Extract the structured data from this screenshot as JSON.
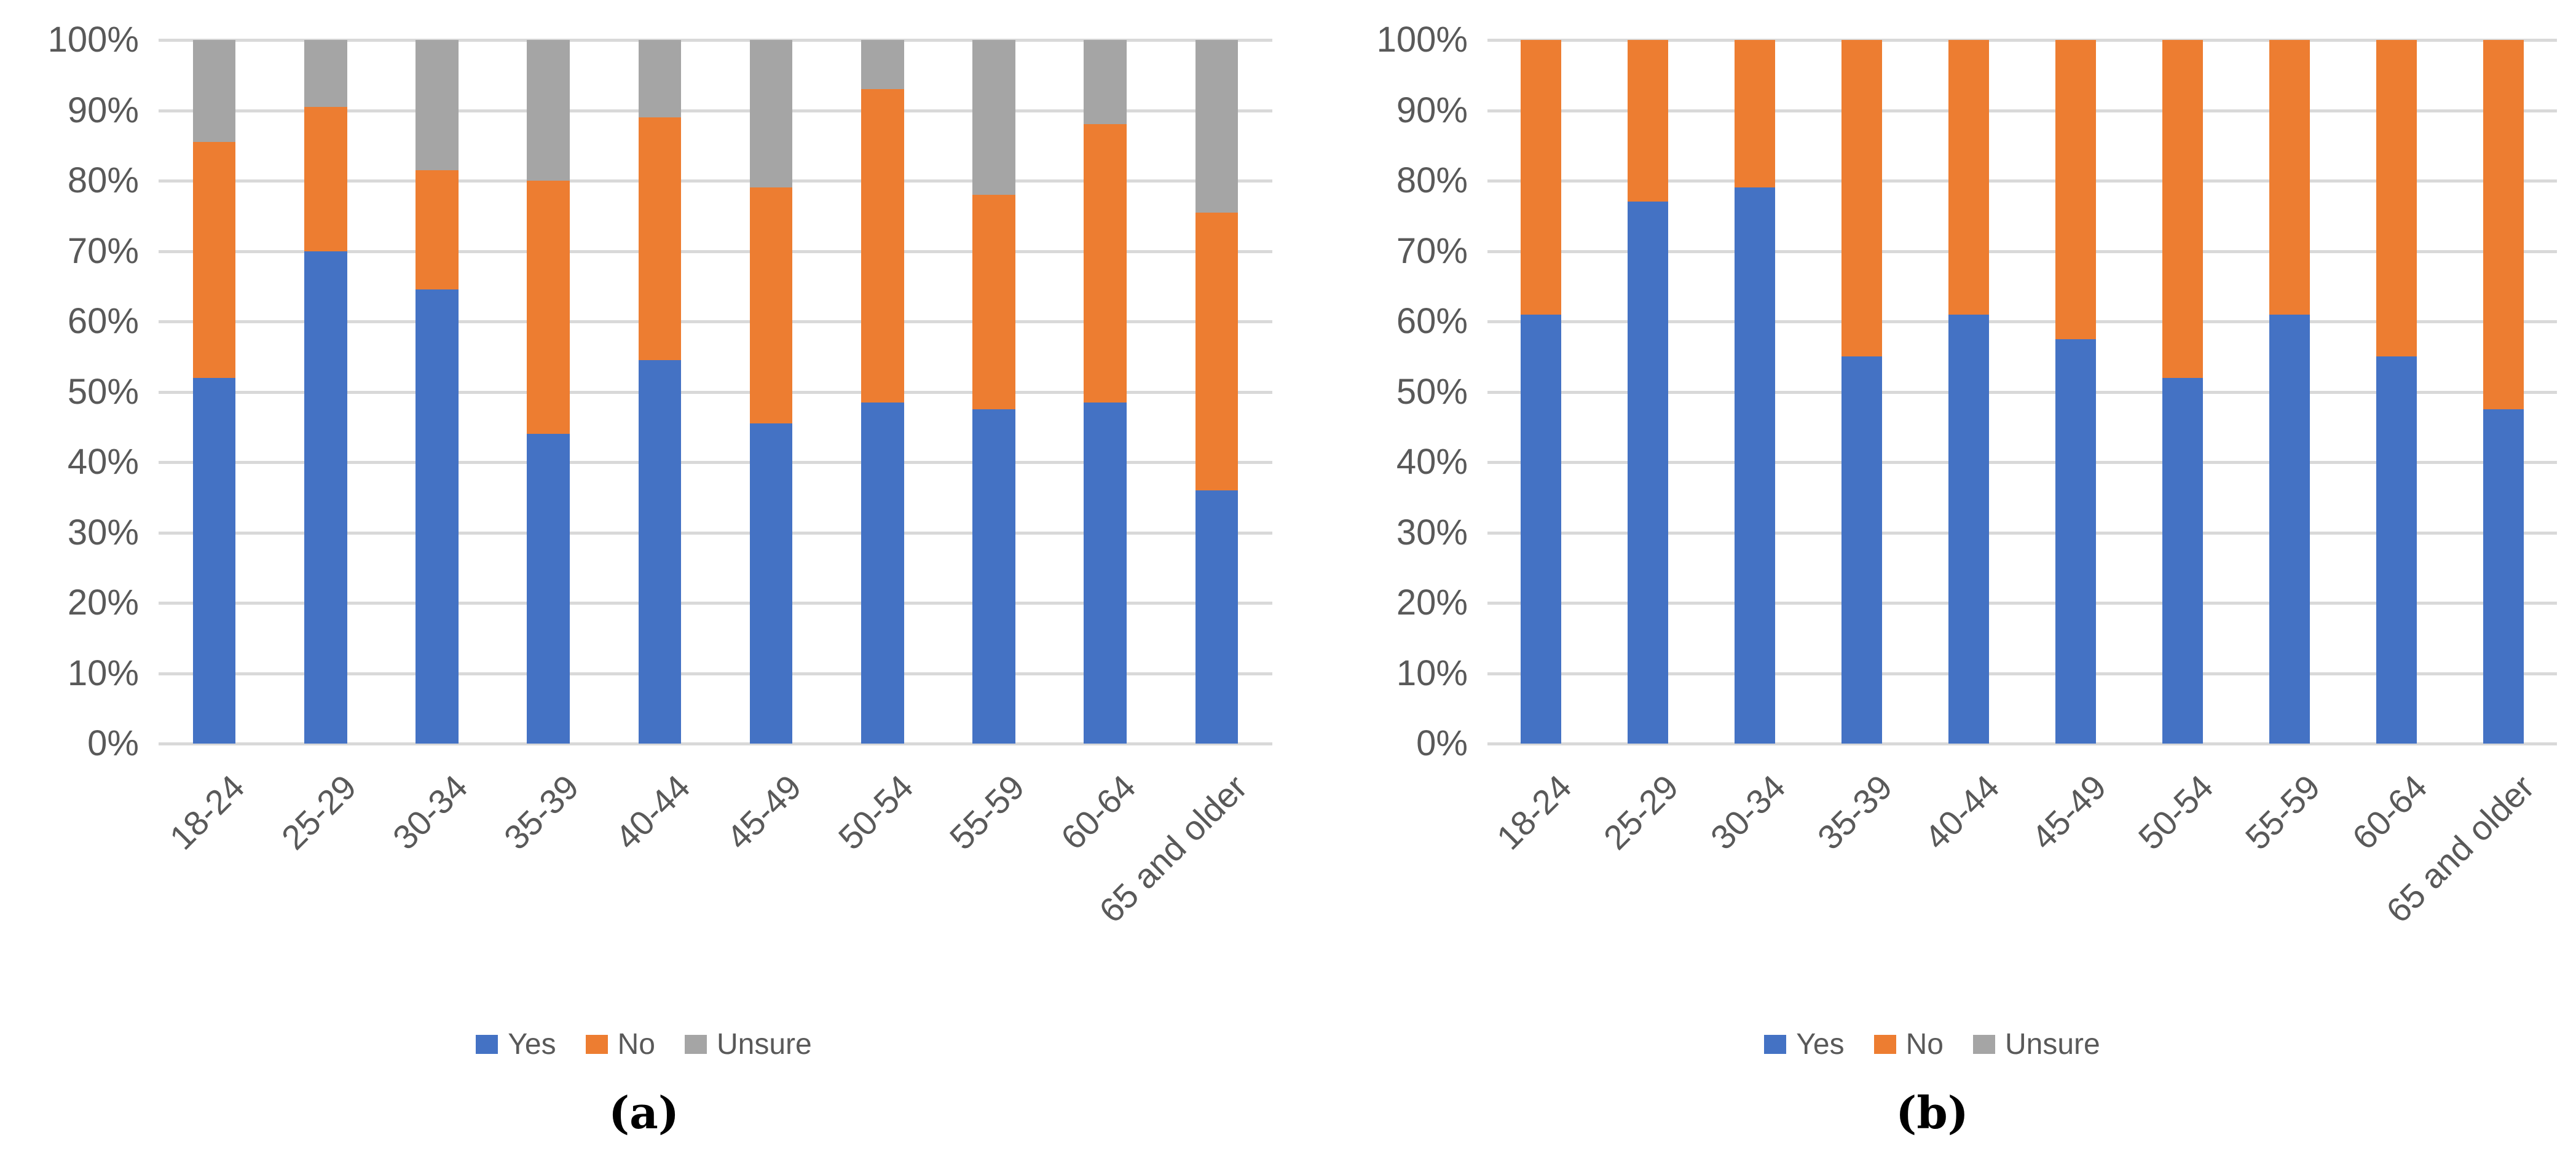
{
  "style": {
    "background": "#FFFFFF",
    "gridline_color": "#D9D9D9",
    "axis_text_color": "#595959",
    "caption_color": "#000000"
  },
  "chart_data": [
    {
      "type": "bar",
      "stacked": true,
      "units": "percent",
      "caption": "(a)",
      "title": "",
      "xlabel": "",
      "ylabel": "",
      "ylim": [
        0,
        100
      ],
      "y_ticks": [
        "0%",
        "10%",
        "20%",
        "30%",
        "40%",
        "50%",
        "60%",
        "70%",
        "80%",
        "90%",
        "100%"
      ],
      "grid": "horizontal",
      "legend_position": "bottom",
      "categories": [
        "18-24",
        "25-29",
        "30-34",
        "35-39",
        "40-44",
        "45-49",
        "50-54",
        "55-59",
        "60-64",
        "65 and older"
      ],
      "series": [
        {
          "name": "Yes",
          "color": "#4472C4",
          "values": [
            52,
            70,
            64.5,
            44,
            54.5,
            45.5,
            48.5,
            47.5,
            48.5,
            36
          ]
        },
        {
          "name": "No",
          "color": "#ED7D31",
          "values": [
            33.5,
            20.5,
            17,
            36,
            34.5,
            33.5,
            44.5,
            30.5,
            39.5,
            39.5
          ]
        },
        {
          "name": "Unsure",
          "color": "#A5A5A5",
          "values": [
            14.5,
            9.5,
            18.5,
            20,
            11,
            21,
            7,
            22,
            12,
            24.5
          ]
        }
      ]
    },
    {
      "type": "bar",
      "stacked": true,
      "units": "percent",
      "caption": "(b)",
      "title": "",
      "xlabel": "",
      "ylabel": "",
      "ylim": [
        0,
        100
      ],
      "y_ticks": [
        "0%",
        "10%",
        "20%",
        "30%",
        "40%",
        "50%",
        "60%",
        "70%",
        "80%",
        "90%",
        "100%"
      ],
      "grid": "horizontal",
      "legend_position": "bottom",
      "categories": [
        "18-24",
        "25-29",
        "30-34",
        "35-39",
        "40-44",
        "45-49",
        "50-54",
        "55-59",
        "60-64",
        "65 and older"
      ],
      "series": [
        {
          "name": "Yes",
          "color": "#4472C4",
          "values": [
            61,
            77,
            79,
            55,
            61,
            57.5,
            52,
            61,
            55,
            47.5
          ]
        },
        {
          "name": "No",
          "color": "#ED7D31",
          "values": [
            39,
            23,
            21,
            45,
            39,
            42.5,
            48,
            39,
            45,
            52.5
          ]
        },
        {
          "name": "Unsure",
          "color": "#A5A5A5",
          "values": [
            0,
            0,
            0,
            0,
            0,
            0,
            0,
            0,
            0,
            0
          ]
        }
      ]
    }
  ]
}
